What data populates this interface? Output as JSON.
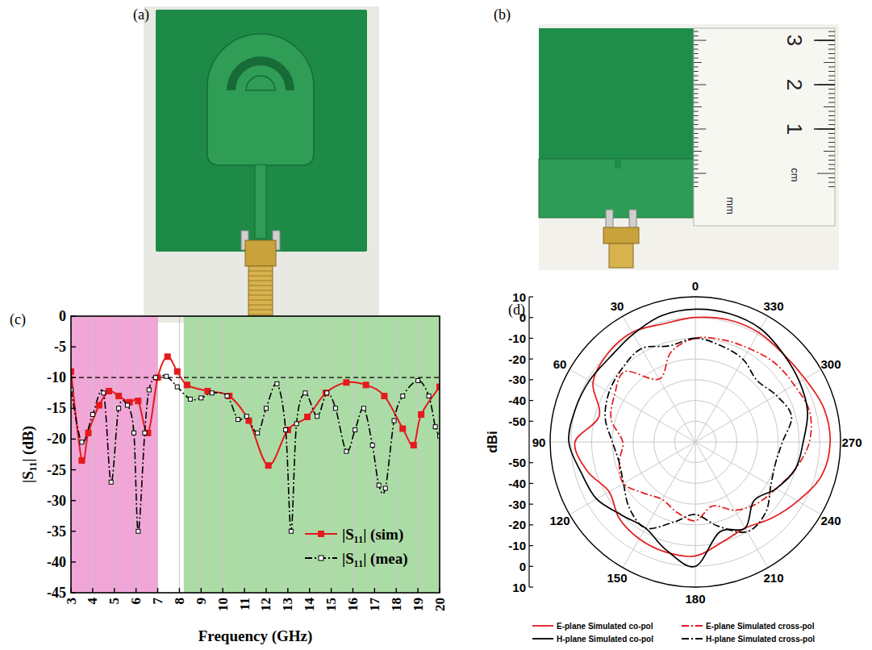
{
  "photos": [
    {
      "label": "(a)"
    },
    {
      "label": "(b)",
      "ruler": {
        "ticks": [
          1,
          2,
          3
        ],
        "unit": "cm",
        "minor_unit": "mm"
      }
    }
  ],
  "chart_data": [
    {
      "panel": "(c)",
      "type": "line",
      "xlabel": "Frequency (GHz)",
      "ylabel": "|S₁₁| (dB)",
      "xlim": [
        3,
        20
      ],
      "ylim": [
        -45,
        0
      ],
      "xticks": [
        3,
        4,
        5,
        6,
        7,
        8,
        9,
        10,
        11,
        12,
        13,
        14,
        15,
        16,
        17,
        18,
        19,
        20
      ],
      "yticks": [
        -45,
        -40,
        -35,
        -30,
        -25,
        -20,
        -15,
        -10,
        -5,
        0
      ],
      "grid": true,
      "legend": "lower right",
      "bands": [
        {
          "from": 3,
          "to": 7,
          "color": "#f0a6d6"
        },
        {
          "from": 8.2,
          "to": 20,
          "color": "#acdca6"
        }
      ],
      "reference_line": -10,
      "series": [
        {
          "name": "|S₁₁| (sim)",
          "color": "#e41a1c",
          "marker": "square",
          "line_style": "solid",
          "x": [
            3,
            3.5,
            3.8,
            4.3,
            4.75,
            5.2,
            5.7,
            6.1,
            6.55,
            7,
            7.45,
            7.9,
            8.35,
            9.3,
            10.3,
            11.2,
            12.1,
            13,
            13.9,
            14.75,
            15.7,
            16.6,
            17.45,
            18.3,
            18.8,
            19.15,
            20
          ],
          "values": [
            -9,
            -23.5,
            -19,
            -14.5,
            -12.2,
            -13,
            -14,
            -13.8,
            -19,
            -10,
            -6.6,
            -9,
            -11.2,
            -12.2,
            -13,
            -17,
            -24.3,
            -18.5,
            -16.4,
            -12.5,
            -10.8,
            -11.2,
            -13,
            -18.3,
            -21,
            -16,
            -11.5
          ]
        },
        {
          "name": "|S₁₁| (mea)",
          "color": "#000000",
          "marker": "square",
          "line_style": "dashdot",
          "x": [
            3,
            3.5,
            4,
            4.5,
            4.85,
            5.2,
            5.6,
            5.9,
            6.1,
            6.4,
            6.6,
            6.9,
            7.4,
            7.9,
            8.5,
            9,
            9.5,
            10.2,
            10.7,
            11.1,
            11.6,
            12,
            12.5,
            12.9,
            13.15,
            13.4,
            13.8,
            14.35,
            14.8,
            15.2,
            15.7,
            16.1,
            16.5,
            16.9,
            17.2,
            17.5,
            17.9,
            18.3,
            19,
            19.5,
            19.8,
            20
          ],
          "values": [
            -12,
            -20.5,
            -16,
            -12.5,
            -27,
            -15,
            -14.5,
            -19,
            -35,
            -19,
            -12,
            -10,
            -9.8,
            -11.5,
            -13.5,
            -13.3,
            -12.5,
            -13,
            -16.8,
            -16.3,
            -19,
            -15,
            -11,
            -18.5,
            -35,
            -17.5,
            -12.5,
            -16.3,
            -12.5,
            -15,
            -22,
            -18.5,
            -15,
            -21,
            -27.5,
            -28,
            -17,
            -13,
            -10.5,
            -13,
            -18,
            -19.5
          ]
        }
      ]
    },
    {
      "panel": "(d)",
      "type": "polar",
      "ylabel": "dBi",
      "theta": [
        0,
        15,
        30,
        45,
        60,
        75,
        90,
        105,
        120,
        135,
        150,
        165,
        180,
        195,
        210,
        225,
        240,
        255,
        270,
        285,
        300,
        315,
        330,
        345
      ],
      "thetaticks": [
        0,
        30,
        60,
        90,
        120,
        150,
        180,
        210,
        240,
        270,
        300,
        330
      ],
      "rlim": [
        -60,
        10
      ],
      "rticks": [
        -50,
        -40,
        -30,
        -20,
        -10,
        0,
        10
      ],
      "grid": true,
      "legend": "bottom",
      "series": [
        {
          "name": "E-plane Simulated co-pol",
          "color": "#e41a1c",
          "line_style": "solid",
          "values": [
            0,
            -1,
            1,
            0,
            -3,
            -12,
            -2,
            -6,
            -12,
            -8,
            -6,
            -5,
            -5,
            -10,
            -12,
            -8,
            -3,
            3,
            5,
            4,
            1,
            0,
            1,
            1
          ]
        },
        {
          "name": "E-plane Simulated cross-pol",
          "color": "#e41a1c",
          "line_style": "dashdot",
          "values": [
            -10,
            -15,
            -25,
            -12,
            -15,
            -18,
            -25,
            -22,
            -20,
            -25,
            -28,
            -25,
            -22,
            -28,
            -22,
            -18,
            -15,
            -10,
            -5,
            -3,
            -5,
            -6,
            -8,
            -9
          ]
        },
        {
          "name": "H-plane Simulated co-pol",
          "color": "#000000",
          "line_style": "solid",
          "values": [
            4,
            3,
            0,
            -2,
            -1,
            0,
            1,
            -3,
            -5,
            -10,
            -12,
            -6,
            0,
            -15,
            -12,
            -20,
            -15,
            -10,
            -8,
            -4,
            -2,
            0,
            3,
            4
          ]
        },
        {
          "name": "H-plane Simulated cross-pol",
          "color": "#000000",
          "line_style": "dashdot",
          "values": [
            -10,
            -12,
            -8,
            -10,
            -12,
            -15,
            -20,
            -22,
            -20,
            -15,
            -12,
            -20,
            -25,
            -18,
            -10,
            -12,
            -18,
            -20,
            -18,
            -12,
            -15,
            -18,
            -14,
            -12
          ]
        }
      ]
    }
  ]
}
